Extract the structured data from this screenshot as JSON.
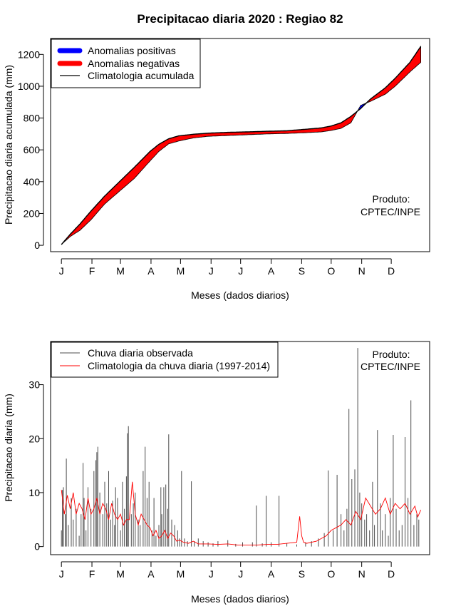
{
  "figure_title": "Precipitacao diaria 2020 : Regiao 82",
  "colors": {
    "positive": "#0000ff",
    "negative": "#ff0000",
    "climatology_line": "#000000",
    "observed": "#4d4d4d",
    "climatology_daily": "#ff0000"
  },
  "chart_data": [
    {
      "type": "area",
      "title": "Precipitacao diaria 2020 : Regiao 82",
      "xlabel": "Meses (dados diarios)",
      "ylabel": "Precipitacao diaria acumulada (mm)",
      "ylim": [
        -40,
        1300
      ],
      "xlim": [
        -10,
        375
      ],
      "yticks": [
        0,
        200,
        400,
        600,
        800,
        1000,
        1200
      ],
      "month_labels": [
        "J",
        "F",
        "M",
        "A",
        "M",
        "J",
        "J",
        "A",
        "S",
        "O",
        "N",
        "D"
      ],
      "month_days": [
        1,
        32,
        61,
        92,
        122,
        153,
        183,
        214,
        245,
        275,
        306,
        336
      ],
      "product_label": [
        "Produto:",
        "CPTEC/INPE"
      ],
      "legend": {
        "position": "top-left",
        "entries": [
          "Anomalias positivas",
          "Anomalias negativas",
          "Climatologia acumulada"
        ]
      },
      "climatology_cumulative": {
        "day": [
          1,
          10,
          20,
          31,
          45,
          60,
          75,
          91,
          100,
          110,
          120,
          135,
          150,
          170,
          190,
          210,
          230,
          250,
          265,
          275,
          285,
          295,
          305,
          315,
          330,
          340,
          355,
          366
        ],
        "value": [
          5,
          70,
          135,
          215,
          310,
          400,
          490,
          590,
          635,
          670,
          688,
          698,
          705,
          710,
          713,
          717,
          720,
          730,
          738,
          750,
          770,
          810,
          860,
          920,
          990,
          1050,
          1150,
          1250
        ]
      },
      "observed_cumulative": {
        "day": [
          1,
          10,
          20,
          31,
          45,
          60,
          75,
          91,
          100,
          110,
          120,
          135,
          150,
          170,
          190,
          210,
          230,
          250,
          265,
          275,
          285,
          295,
          305,
          315,
          330,
          340,
          355,
          366
        ],
        "value": [
          5,
          55,
          95,
          160,
          260,
          340,
          420,
          530,
          590,
          638,
          655,
          675,
          685,
          690,
          695,
          700,
          703,
          708,
          713,
          722,
          735,
          770,
          880,
          905,
          950,
          1000,
          1090,
          1150
        ]
      }
    },
    {
      "type": "bar",
      "xlabel": "Meses (dados diarios)",
      "ylabel": "Precipitacao diaria (mm)",
      "ylim": [
        -1.5,
        38
      ],
      "xlim": [
        -10,
        375
      ],
      "yticks": [
        0,
        10,
        20,
        30
      ],
      "month_labels": [
        "J",
        "F",
        "M",
        "A",
        "M",
        "J",
        "J",
        "A",
        "S",
        "O",
        "N",
        "D"
      ],
      "month_days": [
        1,
        32,
        61,
        92,
        122,
        153,
        183,
        214,
        245,
        275,
        306,
        336
      ],
      "product_label": [
        "Produto:",
        "CPTEC/INPE"
      ],
      "legend": {
        "position": "top-left",
        "entries": [
          "Chuva diaria observada",
          "Climatologia da chuva diaria (1997-2014)"
        ]
      },
      "observed_daily": {
        "day": [
          1,
          2,
          3,
          5,
          6,
          8,
          11,
          13,
          16,
          19,
          21,
          23,
          24,
          26,
          28,
          31,
          34,
          36,
          37,
          38,
          40,
          43,
          45,
          47,
          49,
          51,
          53,
          55,
          56,
          58,
          61,
          63,
          65,
          67,
          68,
          69,
          72,
          74,
          76,
          79,
          81,
          84,
          86,
          88,
          90,
          93,
          95,
          97,
          100,
          102,
          103,
          105,
          107,
          109,
          110,
          113,
          116,
          119,
          121,
          123,
          126,
          129,
          133,
          136,
          140,
          145,
          150,
          155,
          160,
          170,
          178,
          185,
          195,
          199,
          205,
          209,
          214,
          222,
          230,
          240,
          249,
          255,
          262,
          268,
          272,
          277,
          281,
          285,
          288,
          291,
          293,
          296,
          299,
          302,
          304,
          306,
          309,
          311,
          314,
          317,
          319,
          322,
          325,
          327,
          330,
          333,
          335,
          338,
          341,
          344,
          347,
          350,
          353,
          356,
          359,
          362,
          364
        ],
        "value": [
          3,
          10.5,
          11,
          6,
          16.3,
          4,
          9,
          5,
          7,
          2,
          6,
          15.5,
          9,
          3,
          11,
          7,
          14,
          16,
          17.5,
          18.5,
          10,
          6,
          12,
          8,
          14,
          5,
          8.5,
          4,
          11,
          9,
          3,
          12,
          7,
          13,
          21,
          22.3,
          6,
          8,
          10,
          5,
          4,
          14,
          18.5,
          9,
          12,
          3,
          9,
          2,
          4,
          11,
          6,
          11,
          11.5,
          7,
          20.8,
          5,
          4,
          3,
          1.5,
          14,
          1.5,
          1,
          12.1,
          1,
          1.5,
          1,
          0.8,
          0.6,
          1,
          1.2,
          0.5,
          0.8,
          0.8,
          7.6,
          0.6,
          9.4,
          0.8,
          9.4,
          0.6,
          0.4,
          0.8,
          1,
          1.5,
          2.5,
          14.1,
          3,
          13.3,
          6,
          3,
          7,
          25.5,
          12.5,
          14.3,
          36.8,
          10,
          8,
          5,
          6,
          3,
          12,
          4,
          21.6,
          8,
          3,
          6,
          2,
          9,
          20.7,
          7,
          3,
          4,
          20.3,
          9,
          27.1,
          4,
          6,
          5
        ]
      },
      "climatology_daily": {
        "day": [
          1,
          4,
          7,
          10,
          13,
          16,
          19,
          22,
          25,
          28,
          31,
          34,
          37,
          40,
          43,
          46,
          49,
          52,
          55,
          58,
          61,
          64,
          67,
          70,
          73,
          76,
          79,
          82,
          85,
          88,
          91,
          94,
          97,
          100,
          103,
          106,
          109,
          112,
          115,
          118,
          121,
          125,
          130,
          135,
          140,
          150,
          160,
          170,
          180,
          190,
          200,
          210,
          220,
          230,
          240,
          243,
          245,
          247,
          250,
          260,
          270,
          275,
          280,
          285,
          290,
          295,
          300,
          305,
          310,
          315,
          320,
          325,
          330,
          335,
          340,
          345,
          350,
          355,
          360,
          363,
          366
        ],
        "value": [
          10.5,
          6,
          9.5,
          7,
          10,
          6,
          8,
          7,
          5,
          9,
          6,
          7,
          9,
          6,
          8,
          7,
          5,
          8,
          6,
          5,
          6,
          4,
          5,
          5,
          12,
          6,
          4,
          6,
          5,
          4,
          3.5,
          2,
          3,
          1.5,
          2,
          3,
          1.5,
          2.5,
          2,
          1,
          1.2,
          0.8,
          0.6,
          1,
          0.5,
          0.5,
          0.4,
          0.5,
          0.3,
          0.3,
          0.3,
          0.4,
          0.4,
          0.6,
          0.8,
          5.6,
          2,
          0.8,
          0.6,
          1,
          2,
          3,
          3.5,
          4,
          5,
          4,
          6.5,
          5,
          9,
          7.5,
          6,
          7,
          9,
          6,
          8,
          7,
          8,
          6,
          7.5,
          5.5,
          6.8
        ]
      }
    }
  ]
}
